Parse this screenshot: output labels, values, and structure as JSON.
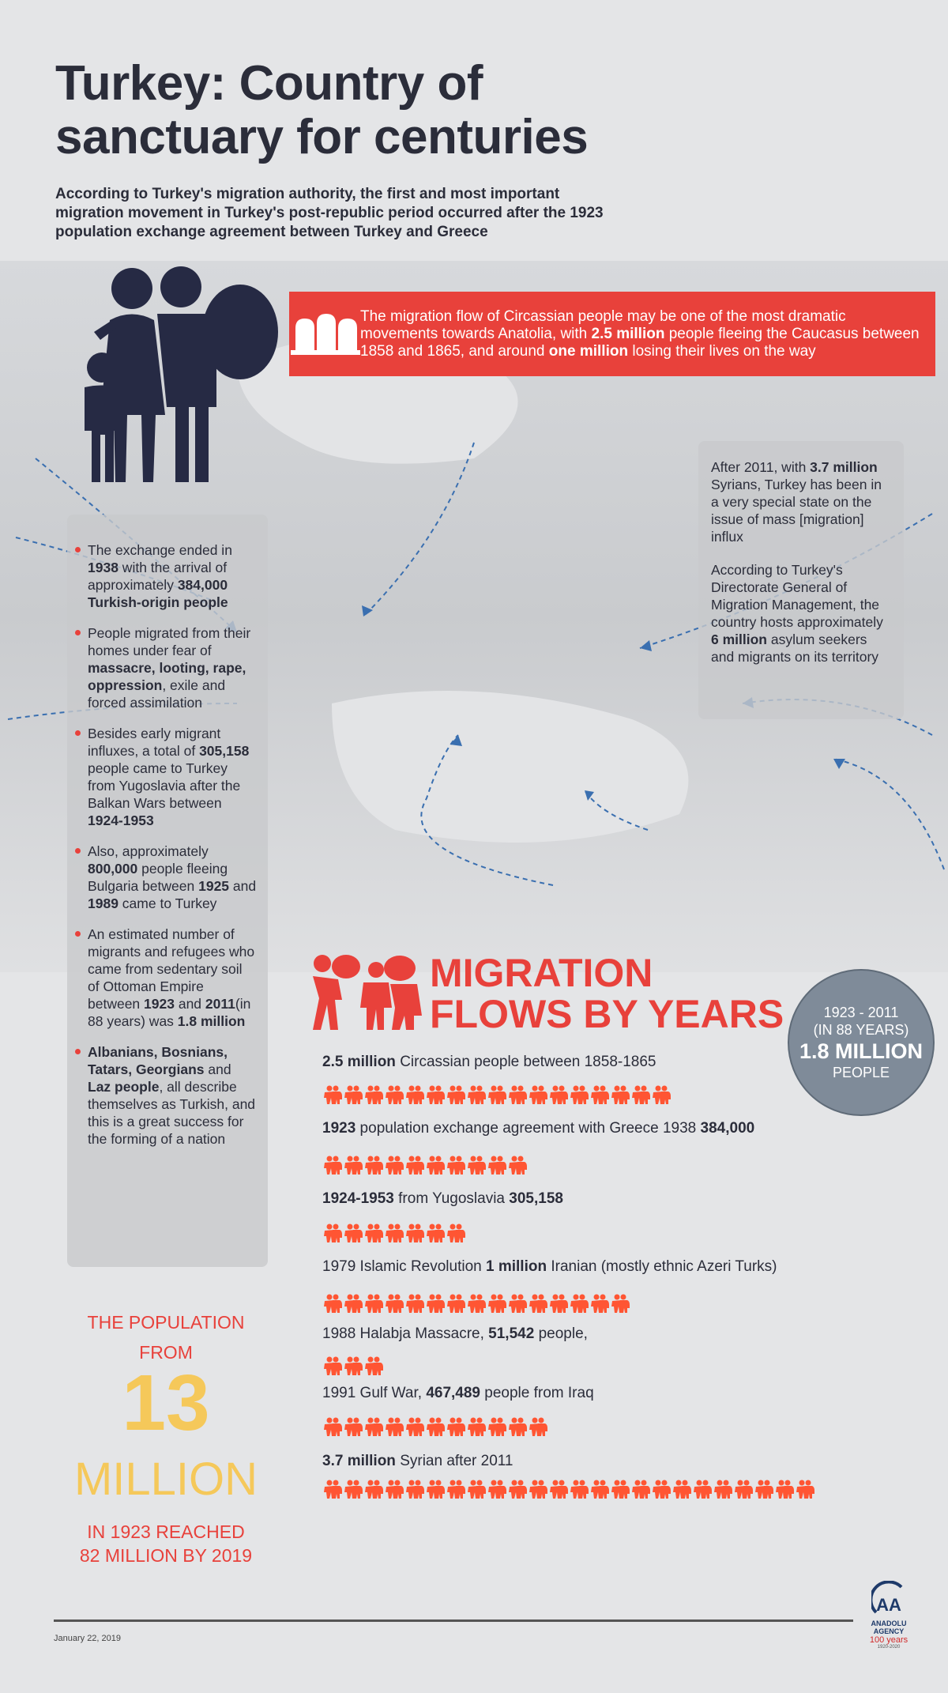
{
  "title": "Turkey: Country of sanctuary for centuries",
  "subtitle": "According to Turkey's migration authority, the first and most important migration movement in Turkey's post-republic period occurred after the 1923 population exchange agreement between Turkey and Greece",
  "banner": {
    "icon": "gravestones-icon",
    "segments": [
      {
        "t": "The migration flow of Circassian people may be one of the most dramatic movements towards Anatolia, with "
      },
      {
        "t": "2.5 million",
        "b": true
      },
      {
        "t": " people fleeing the Caucasus between 1858 and 1865, and around "
      },
      {
        "t": "one million",
        "b": true
      },
      {
        "t": " losing their lives on the way"
      }
    ]
  },
  "left_panel": [
    [
      {
        "t": "The exchange ended in "
      },
      {
        "t": "1938",
        "b": true
      },
      {
        "t": " with the arrival of approximately "
      },
      {
        "t": "384,000 Turkish-origin people",
        "b": true
      }
    ],
    [
      {
        "t": "People migrated from their homes under fear of "
      },
      {
        "t": "massacre, looting, rape, oppression",
        "b": true
      },
      {
        "t": ", exile and forced assimilation"
      }
    ],
    [
      {
        "t": "Besides early migrant influxes, a total of "
      },
      {
        "t": "305,158",
        "b": true
      },
      {
        "t": " people came to Turkey from Yugoslavia after the Balkan Wars between "
      },
      {
        "t": "1924-1953",
        "b": true
      }
    ],
    [
      {
        "t": "Also, approximately "
      },
      {
        "t": "800,000",
        "b": true
      },
      {
        "t": " people fleeing Bulgaria between "
      },
      {
        "t": "1925",
        "b": true
      },
      {
        "t": " and "
      },
      {
        "t": "1989",
        "b": true
      },
      {
        "t": " came to Turkey"
      }
    ],
    [
      {
        "t": "An estimated number of migrants and refugees who came from sedentary soil of Ottoman Empire between "
      },
      {
        "t": "1923",
        "b": true
      },
      {
        "t": " and "
      },
      {
        "t": "2011",
        "b": true
      },
      {
        "t": "(in 88 years) was "
      },
      {
        "t": "1.8 million",
        "b": true
      }
    ],
    [
      {
        "t": "Albanians, Bosnians, Tatars, Georgians",
        "b": true
      },
      {
        "t": " and "
      },
      {
        "t": "Laz people",
        "b": true
      },
      {
        "t": ", all describe themselves as Turkish, and this is a great success for the forming of a nation"
      }
    ]
  ],
  "right_panel": [
    [
      {
        "t": "After 2011, with "
      },
      {
        "t": "3.7 million",
        "b": true
      },
      {
        "t": " Syrians, Turkey has been in a very special state on the issue of mass [migration] influx"
      }
    ],
    [
      {
        "t": "According to Turkey's Directorate General of Migration Management, the country hosts approximately "
      },
      {
        "t": "6 million",
        "b": true
      },
      {
        "t": " asylum seekers and migrants on its territory"
      }
    ]
  ],
  "flows_title": [
    "MIGRATION",
    "FLOWS BY YEARS"
  ],
  "circle": {
    "line1": "1923 - 2011",
    "line2": "(IN 88 YEARS)",
    "big": "1.8 MILLION",
    "line3": "PEOPLE"
  },
  "flows": [
    {
      "segments": [
        {
          "t": "2.5 million",
          "b": true
        },
        {
          "t": " Circassian people between 1858-1865"
        }
      ],
      "icons": 17
    },
    {
      "segments": [
        {
          "t": "1923",
          "b": true
        },
        {
          "t": " population exchange agreement with Greece 1938 "
        },
        {
          "t": "384,000",
          "b": true
        }
      ],
      "icons": 10
    },
    {
      "segments": [
        {
          "t": "1924-1953",
          "b": true
        },
        {
          "t": " from Yugoslavia "
        },
        {
          "t": "305,158",
          "b": true
        }
      ],
      "icons": 7
    },
    {
      "segments": [
        {
          "t": "1979 Islamic Revolution "
        },
        {
          "t": "1 million",
          "b": true
        },
        {
          "t": " Iranian (mostly ethnic Azeri Turks)"
        }
      ],
      "icons": 15
    },
    {
      "segments": [
        {
          "t": "1988 Halabja Massacre, "
        },
        {
          "t": "51,542",
          "b": true
        },
        {
          "t": " people,"
        }
      ],
      "icons": 3
    },
    {
      "segments": [
        {
          "t": "1991 Gulf War, "
        },
        {
          "t": "467,489",
          "b": true
        },
        {
          "t": " people from Iraq"
        }
      ],
      "icons": 11
    },
    {
      "segments": [
        {
          "t": "3.7 million",
          "b": true
        },
        {
          "t": " Syrian after 2011"
        }
      ],
      "icons": 24
    }
  ],
  "population": {
    "line1": "THE POPULATION",
    "line2": "FROM",
    "big": "13",
    "million": "MILLION",
    "line3": "IN 1923 REACHED",
    "line4": "82 MILLION BY 2019"
  },
  "footer": {
    "date": "January 22, 2019",
    "logo_text": "ANADOLU AGENCY",
    "anniversary": "100 years",
    "anniversary_range": "1920-2020"
  },
  "colors": {
    "accent": "#e8413b",
    "dark": "#2b2d3a",
    "yellow": "#f5c85a",
    "circle": "#7f8b99"
  }
}
